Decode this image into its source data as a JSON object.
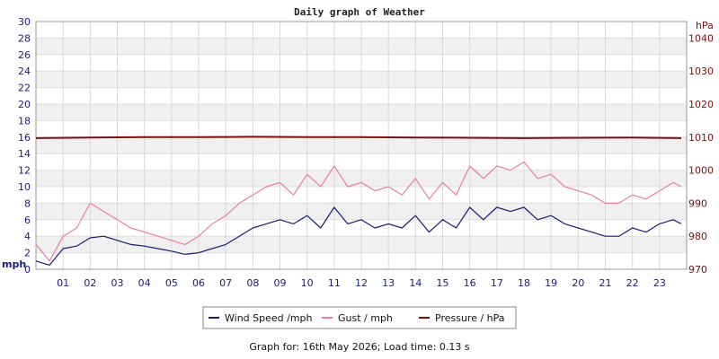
{
  "chart_data": {
    "type": "line",
    "title": "Daily graph of Weather",
    "left_axis": {
      "unit_label": "mph",
      "ylim": [
        0,
        30
      ],
      "ticks": [
        0,
        2,
        4,
        6,
        8,
        10,
        12,
        14,
        16,
        18,
        20,
        22,
        24,
        26,
        28,
        30
      ],
      "color": "#1a1a7a"
    },
    "right_axis": {
      "unit_label": "hPa",
      "ylim": [
        970,
        1045
      ],
      "ticks": [
        970,
        980,
        990,
        1000,
        1010,
        1020,
        1030,
        1040
      ],
      "color": "#7a1010"
    },
    "x_ticks": [
      "01",
      "02",
      "03",
      "04",
      "05",
      "06",
      "07",
      "08",
      "09",
      "10",
      "11",
      "12",
      "13",
      "14",
      "15",
      "16",
      "17",
      "18",
      "19",
      "20",
      "21",
      "22",
      "23"
    ],
    "x_range_hours": [
      0,
      24
    ],
    "grid": "horizontal bands",
    "legend_position": "bottom",
    "series": [
      {
        "name": "Wind Speed /mph",
        "axis": "left",
        "color": "#1a1a7a",
        "x": [
          0,
          0.5,
          1,
          1.5,
          2,
          2.5,
          3,
          3.5,
          4,
          4.5,
          5,
          5.5,
          6,
          6.5,
          7,
          7.5,
          8,
          8.5,
          9,
          9.5,
          10,
          10.5,
          11,
          11.5,
          12,
          12.5,
          13,
          13.5,
          14,
          14.5,
          15,
          15.5,
          16,
          16.5,
          17,
          17.5,
          18,
          18.5,
          19,
          19.5,
          20,
          20.5,
          21,
          21.5,
          22,
          22.5,
          23,
          23.5,
          23.8
        ],
        "values": [
          1.0,
          0.5,
          2.5,
          2.8,
          3.8,
          4.0,
          3.5,
          3.0,
          2.8,
          2.5,
          2.2,
          1.8,
          2.0,
          2.5,
          3.0,
          4.0,
          5.0,
          5.5,
          6.0,
          5.5,
          6.5,
          5.0,
          7.5,
          5.5,
          6.0,
          5.0,
          5.5,
          5.0,
          6.5,
          4.5,
          6.0,
          5.0,
          7.5,
          6.0,
          7.5,
          7.0,
          7.5,
          6.0,
          6.5,
          5.5,
          5.0,
          4.5,
          4.0,
          4.0,
          5.0,
          4.5,
          5.5,
          6.0,
          5.5
        ]
      },
      {
        "name": "Gust / mph",
        "axis": "left",
        "color": "#f07ca0",
        "x": [
          0,
          0.5,
          1,
          1.5,
          2,
          2.5,
          3,
          3.5,
          4,
          4.5,
          5,
          5.5,
          6,
          6.5,
          7,
          7.5,
          8,
          8.5,
          9,
          9.5,
          10,
          10.5,
          11,
          11.5,
          12,
          12.5,
          13,
          13.5,
          14,
          14.5,
          15,
          15.5,
          16,
          16.5,
          17,
          17.5,
          18,
          18.5,
          19,
          19.5,
          20,
          20.5,
          21,
          21.5,
          22,
          22.5,
          23,
          23.5,
          23.8
        ],
        "values": [
          3.0,
          1.0,
          4.0,
          5.0,
          8.0,
          7.0,
          6.0,
          5.0,
          4.5,
          4.0,
          3.5,
          3.0,
          4.0,
          5.5,
          6.5,
          8.0,
          9.0,
          10.0,
          10.5,
          9.0,
          11.5,
          10.0,
          12.5,
          10.0,
          10.5,
          9.5,
          10.0,
          9.0,
          11.0,
          8.5,
          10.5,
          9.0,
          12.5,
          11.0,
          12.5,
          12.0,
          13.0,
          11.0,
          11.5,
          10.0,
          9.5,
          9.0,
          8.0,
          8.0,
          9.0,
          8.5,
          9.5,
          10.5,
          10.0
        ]
      },
      {
        "name": "Pressure / hPa",
        "axis": "right",
        "color": "#7a1010",
        "x": [
          0,
          2,
          4,
          6,
          8,
          10,
          12,
          14,
          16,
          18,
          20,
          22,
          23.8
        ],
        "values": [
          1009.7,
          1009.9,
          1010.0,
          1010.0,
          1010.1,
          1010.0,
          1010.0,
          1009.9,
          1009.8,
          1009.7,
          1009.8,
          1009.9,
          1009.7
        ]
      }
    ]
  },
  "legend": [
    "Wind Speed /mph",
    "Gust / mph",
    "Pressure / hPa"
  ],
  "footer": "Graph for: 16th May 2026; Load time: 0.13 s"
}
